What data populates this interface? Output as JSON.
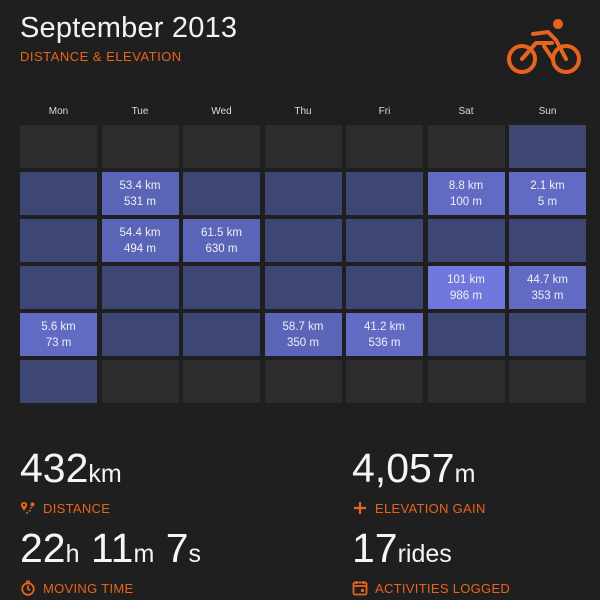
{
  "header": {
    "title": "September 2013",
    "subtitle": "DISTANCE & ELEVATION"
  },
  "icons": {
    "header": "bicycle-rider-icon",
    "accent": "#e8641e"
  },
  "calendar": {
    "weekdays": [
      "Mon",
      "Tue",
      "Wed",
      "Thu",
      "Fri",
      "Sat",
      "Sun"
    ],
    "weeks": [
      [
        {
          "in_month": false
        },
        {
          "in_month": false
        },
        {
          "in_month": false
        },
        {
          "in_month": false
        },
        {
          "in_month": false
        },
        {
          "in_month": false
        },
        {
          "in_month": true
        }
      ],
      [
        {
          "in_month": true
        },
        {
          "in_month": true,
          "distance": "53.4 km",
          "elevation": "531 m"
        },
        {
          "in_month": true
        },
        {
          "in_month": true
        },
        {
          "in_month": true
        },
        {
          "in_month": true,
          "distance": "8.8 km",
          "elevation": "100 m"
        },
        {
          "in_month": true,
          "distance": "2.1 km",
          "elevation": "5 m"
        }
      ],
      [
        {
          "in_month": true
        },
        {
          "in_month": true,
          "distance": "54.4 km",
          "elevation": "494 m"
        },
        {
          "in_month": true,
          "distance": "61.5 km",
          "elevation": "630 m"
        },
        {
          "in_month": true
        },
        {
          "in_month": true
        },
        {
          "in_month": true
        },
        {
          "in_month": true
        }
      ],
      [
        {
          "in_month": true
        },
        {
          "in_month": true
        },
        {
          "in_month": true
        },
        {
          "in_month": true
        },
        {
          "in_month": true
        },
        {
          "in_month": true,
          "distance": "101 km",
          "elevation": "986 m"
        },
        {
          "in_month": true,
          "distance": "44.7 km",
          "elevation": "353 m"
        }
      ],
      [
        {
          "in_month": true,
          "distance": "5.6 km",
          "elevation": "73 m"
        },
        {
          "in_month": true
        },
        {
          "in_month": true
        },
        {
          "in_month": true,
          "distance": "58.7 km",
          "elevation": "350 m"
        },
        {
          "in_month": true,
          "distance": "41.2 km",
          "elevation": "536 m"
        },
        {
          "in_month": true
        },
        {
          "in_month": true
        }
      ],
      [
        {
          "in_month": true
        },
        {
          "in_month": false
        },
        {
          "in_month": false
        },
        {
          "in_month": false
        },
        {
          "in_month": false
        },
        {
          "in_month": false
        },
        {
          "in_month": false
        }
      ]
    ]
  },
  "stats": {
    "distance": {
      "value": "432",
      "unit": "km",
      "label": "DISTANCE",
      "icon": "route-pin-icon"
    },
    "elevation": {
      "value": "4,057",
      "unit": "m",
      "label": "ELEVATION GAIN",
      "icon": "plus-icon"
    },
    "moving_time": {
      "h": "22",
      "h_unit": "h",
      "m": "11",
      "m_unit": "m",
      "s": "7",
      "s_unit": "s",
      "label": "MOVING TIME",
      "icon": "stopwatch-icon"
    },
    "activities": {
      "value": "17",
      "unit": "rides",
      "label": "ACTIVITIES LOGGED",
      "icon": "calendar-icon"
    }
  }
}
